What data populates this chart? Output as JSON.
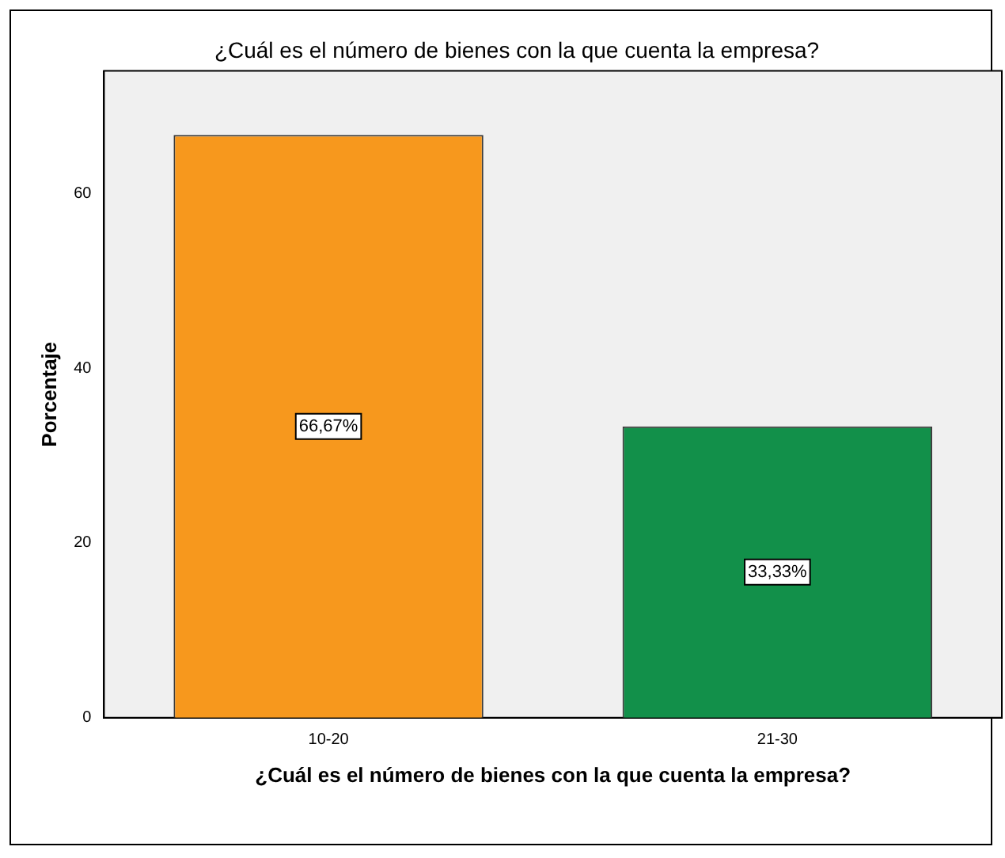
{
  "chart_data": {
    "type": "bar",
    "title": "¿Cuál es el número de bienes con la que cuenta la empresa?",
    "xlabel": "¿Cuál es el número de bienes con la que cuenta la empresa?",
    "ylabel": "Porcentaje",
    "categories": [
      "10-20",
      "21-30"
    ],
    "values": [
      66.67,
      33.33
    ],
    "colors": [
      "#f7981d",
      "#12904a"
    ],
    "value_labels": [
      "66,67%",
      "33,33%"
    ],
    "ylim": [
      0,
      74
    ],
    "yticks": [
      0,
      20,
      40,
      60
    ],
    "grid": false,
    "legend": false
  }
}
